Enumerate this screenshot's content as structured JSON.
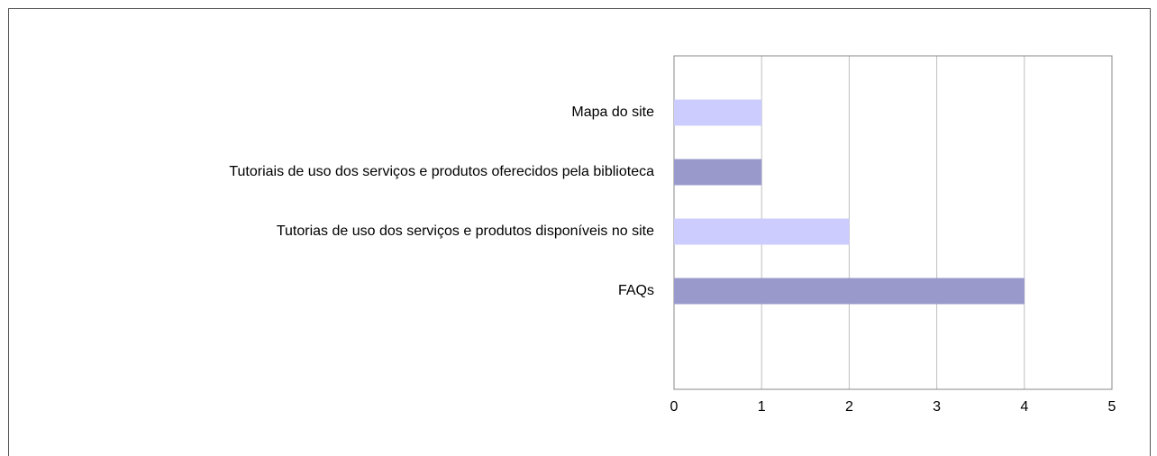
{
  "chart_data": {
    "type": "barh",
    "categories": [
      "Mapa do site",
      "Tutoriais de uso dos serviços e produtos oferecidos pela biblioteca",
      "Tutorias de uso dos serviços e produtos disponíveis no site",
      "FAQs"
    ],
    "values": [
      1,
      1,
      2,
      4
    ],
    "colors": [
      "#ccccff",
      "#9999cc",
      "#ccccff",
      "#9999cc"
    ],
    "xlim": [
      0,
      5
    ],
    "xticks": [
      0,
      1,
      2,
      3,
      4,
      5
    ],
    "grid": true
  }
}
